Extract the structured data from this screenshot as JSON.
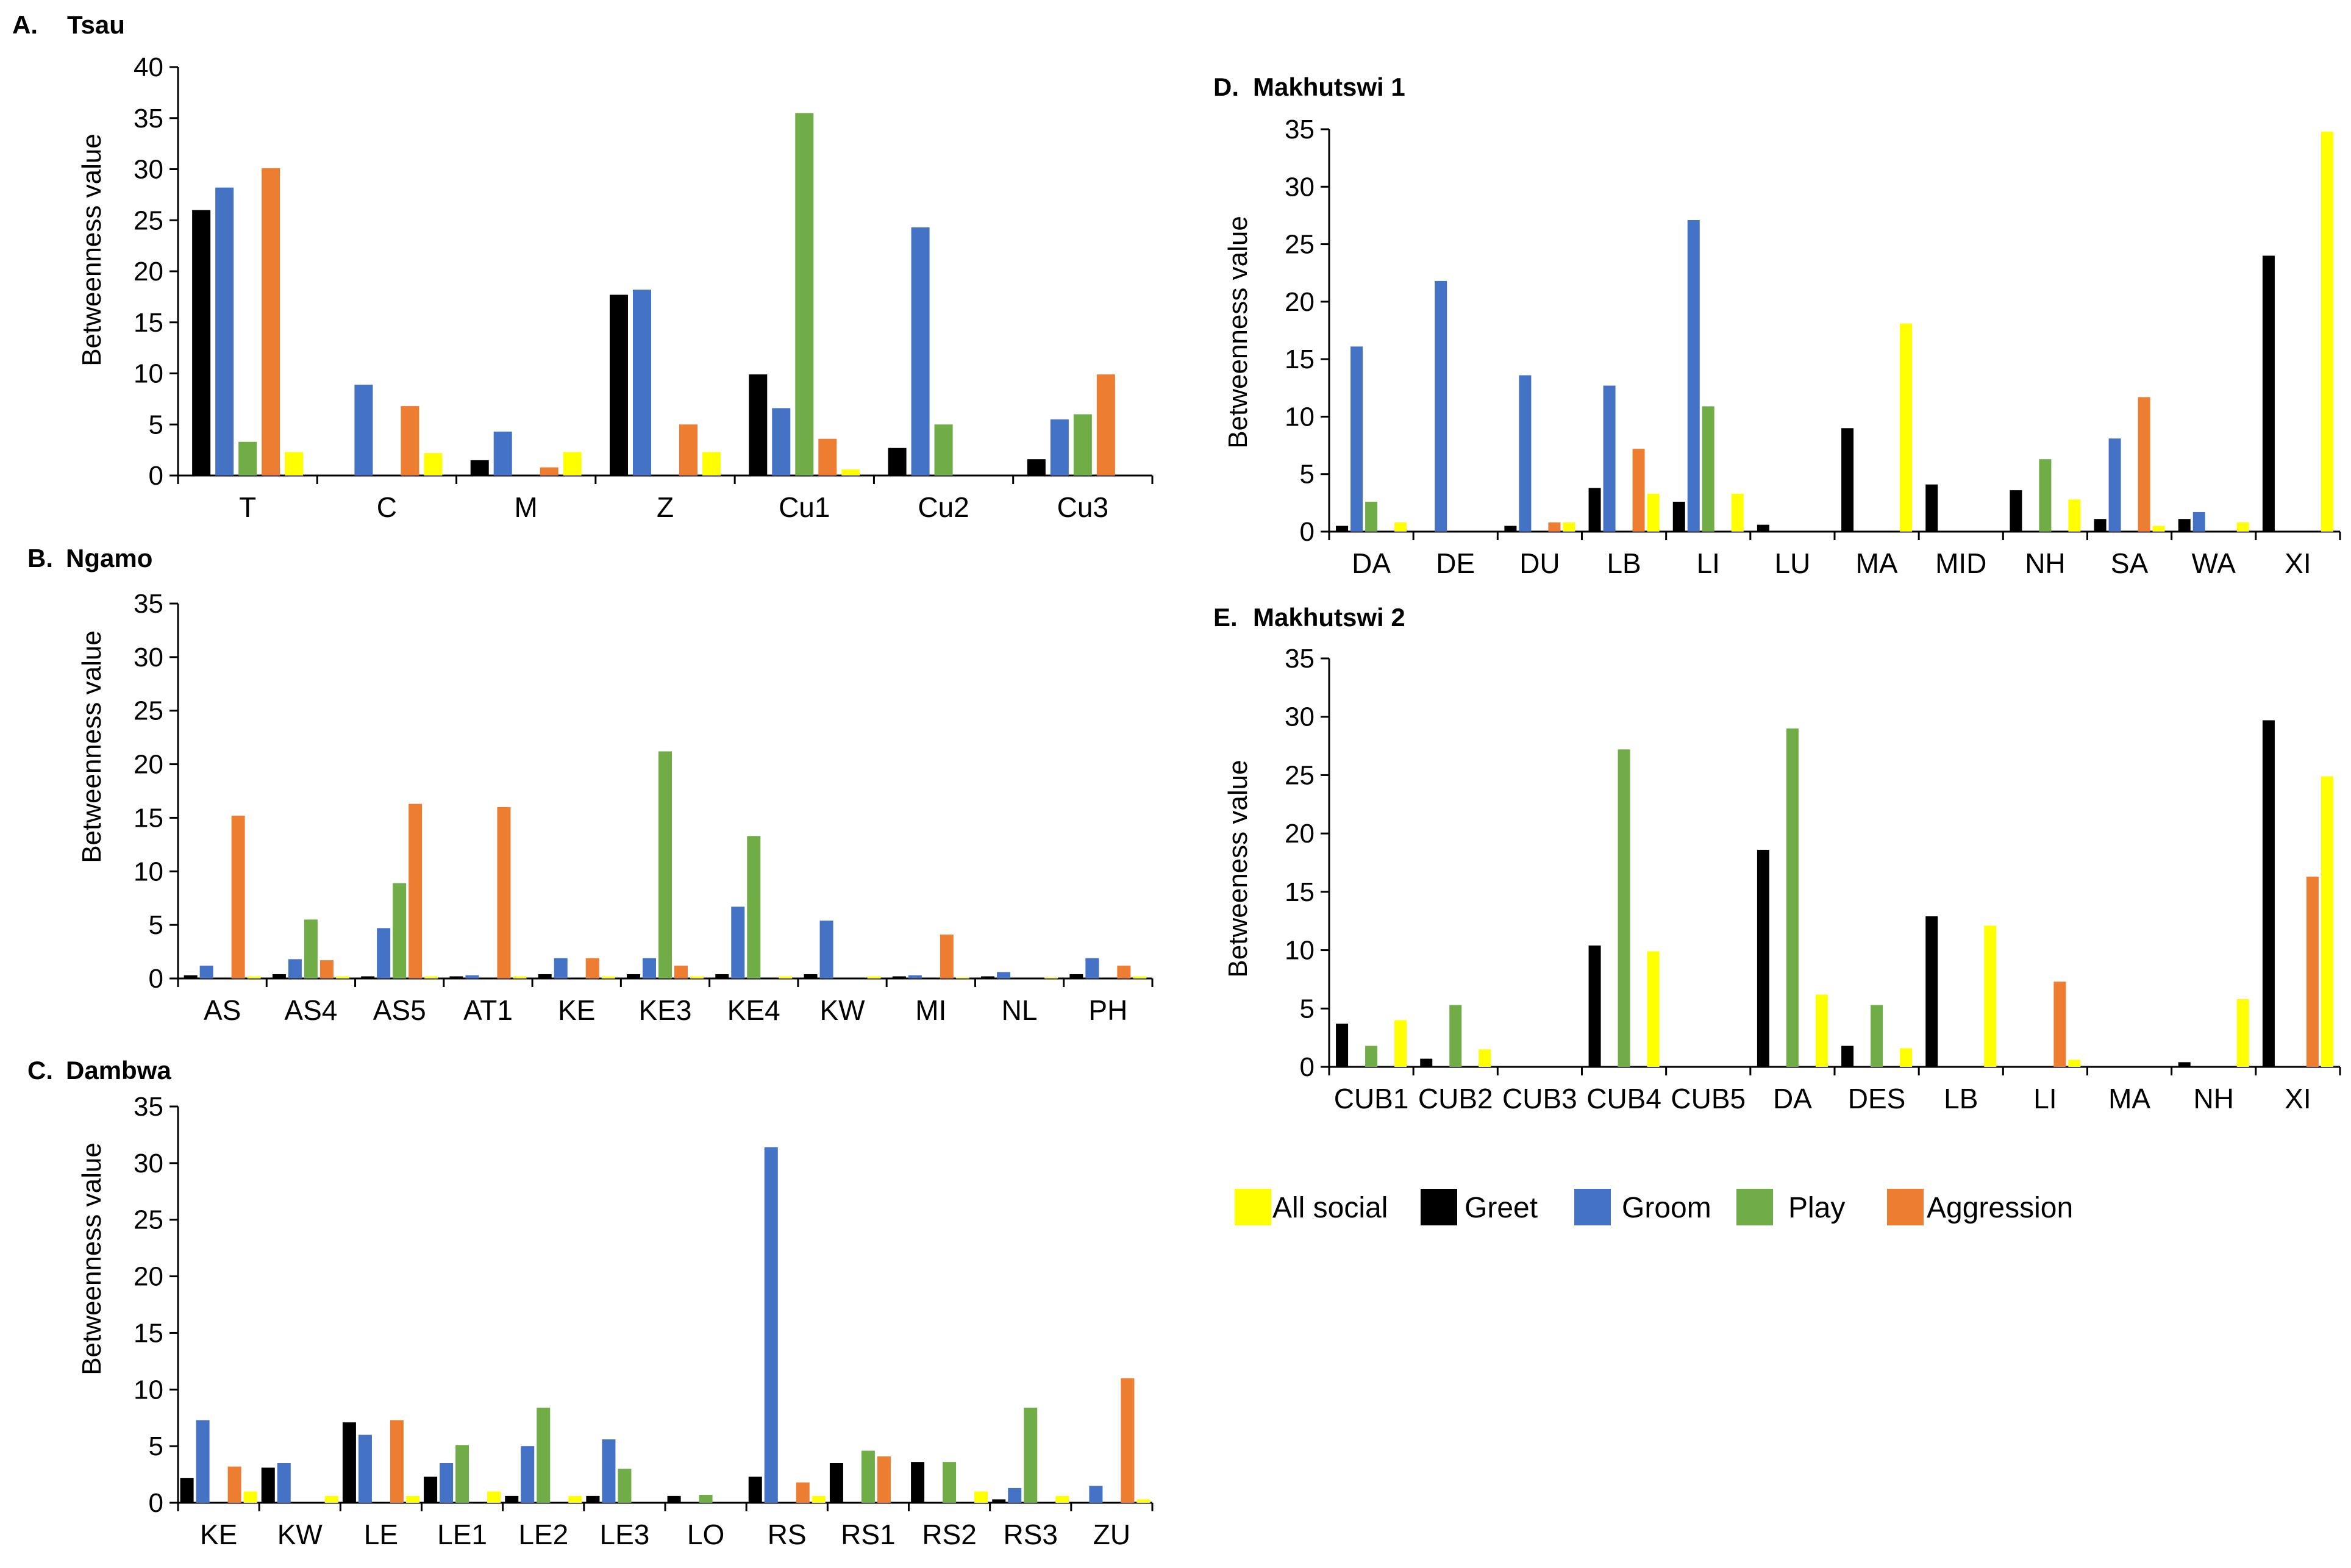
{
  "colors": {
    "all_social": "#FFFF00",
    "greet": "#000000",
    "groom": "#4472C4",
    "play": "#70AD47",
    "aggression": "#ED7D31"
  },
  "legend": [
    {
      "key": "all_social",
      "label": "All social"
    },
    {
      "key": "greet",
      "label": "Greet"
    },
    {
      "key": "groom",
      "label": "Groom"
    },
    {
      "key": "play",
      "label": "Play"
    },
    {
      "key": "aggression",
      "label": "Aggression"
    }
  ],
  "chart_data": [
    {
      "id": "A",
      "type": "bar",
      "letter": "A.",
      "title": "Tsau",
      "ylabel": "Betweenness value",
      "ylim": [
        0,
        40
      ],
      "yticks": [
        0,
        5,
        10,
        15,
        20,
        25,
        30,
        35,
        40
      ],
      "categories": [
        "T",
        "C",
        "M",
        "Z",
        "Cu1",
        "Cu2",
        "Cu3"
      ],
      "series": [
        {
          "name": "Greet",
          "key": "greet",
          "values": [
            26,
            0,
            1.5,
            17.7,
            9.9,
            2.7,
            1.6
          ]
        },
        {
          "name": "Groom",
          "key": "groom",
          "values": [
            28.2,
            8.9,
            4.3,
            18.2,
            6.6,
            24.3,
            5.5
          ]
        },
        {
          "name": "Play",
          "key": "play",
          "values": [
            3.3,
            0,
            0,
            0,
            35.5,
            5,
            6
          ]
        },
        {
          "name": "Aggression",
          "key": "aggression",
          "values": [
            30.1,
            6.8,
            0.8,
            5,
            3.6,
            0,
            9.9
          ]
        },
        {
          "name": "All social",
          "key": "all_social",
          "values": [
            2.3,
            2.2,
            2.3,
            2.3,
            0.6,
            0,
            0
          ]
        }
      ]
    },
    {
      "id": "B",
      "type": "bar",
      "letter": "B.",
      "title": "Ngamo",
      "ylabel": "Betweenness value",
      "ylim": [
        0,
        35
      ],
      "yticks": [
        0,
        5,
        10,
        15,
        20,
        25,
        30,
        35
      ],
      "categories": [
        "AS",
        "AS4",
        "AS5",
        "AT1",
        "KE",
        "KE3",
        "KE4",
        "KW",
        "MI",
        "NL",
        "PH"
      ],
      "series": [
        {
          "name": "Greet",
          "key": "greet",
          "values": [
            0.3,
            0.4,
            0.2,
            0.2,
            0.4,
            0.4,
            0.4,
            0.4,
            0.2,
            0.2,
            0.4
          ]
        },
        {
          "name": "Groom",
          "key": "groom",
          "values": [
            1.2,
            1.8,
            4.7,
            0.3,
            1.9,
            1.9,
            6.7,
            5.4,
            0.3,
            0.6,
            1.9
          ]
        },
        {
          "name": "Play",
          "key": "play",
          "values": [
            0,
            5.5,
            8.9,
            0,
            0,
            21.2,
            13.3,
            0,
            0,
            0,
            0
          ]
        },
        {
          "name": "Aggression",
          "key": "aggression",
          "values": [
            15.2,
            1.7,
            16.3,
            16,
            1.9,
            1.2,
            0,
            0,
            4.1,
            0,
            1.2
          ]
        },
        {
          "name": "All social",
          "key": "all_social",
          "values": [
            0.2,
            0.2,
            0.2,
            0.2,
            0.2,
            0.2,
            0.2,
            0.2,
            0.1,
            0.1,
            0.2
          ]
        }
      ]
    },
    {
      "id": "C",
      "type": "bar",
      "letter": "C.",
      "title": "Dambwa",
      "ylabel": "Betweenness value",
      "ylim": [
        0,
        35
      ],
      "yticks": [
        0,
        5,
        10,
        15,
        20,
        25,
        30,
        35
      ],
      "categories": [
        "KE",
        "KW",
        "LE",
        "LE1",
        "LE2",
        "LE3",
        "LO",
        "RS",
        "RS1",
        "RS2",
        "RS3",
        "ZU"
      ],
      "series": [
        {
          "name": "Greet",
          "key": "greet",
          "values": [
            2.2,
            3.1,
            7.1,
            2.3,
            0.6,
            0.6,
            0.6,
            2.3,
            3.5,
            3.6,
            0.3,
            0
          ]
        },
        {
          "name": "Groom",
          "key": "groom",
          "values": [
            7.3,
            3.5,
            6,
            3.5,
            5,
            5.6,
            0,
            31.4,
            0,
            0,
            1.3,
            1.5
          ]
        },
        {
          "name": "Play",
          "key": "play",
          "values": [
            0,
            0,
            0,
            5.1,
            8.4,
            3,
            0.7,
            0,
            4.6,
            3.6,
            8.4,
            0
          ]
        },
        {
          "name": "Aggression",
          "key": "aggression",
          "values": [
            3.2,
            0,
            7.3,
            0,
            0,
            0,
            0,
            1.8,
            4.1,
            0,
            0,
            11
          ]
        },
        {
          "name": "All social",
          "key": "all_social",
          "values": [
            1,
            0.6,
            0.6,
            1,
            0.6,
            0,
            0,
            0.6,
            0,
            1,
            0.6,
            0.3
          ]
        }
      ]
    },
    {
      "id": "D",
      "type": "bar",
      "letter": "D.",
      "title": "Makhutswi 1",
      "ylabel": "Betweenness value",
      "ylim": [
        0,
        35
      ],
      "yticks": [
        0,
        5,
        10,
        15,
        20,
        25,
        30,
        35
      ],
      "categories": [
        "DA",
        "DE",
        "DU",
        "LB",
        "LI",
        "LU",
        "MA",
        "MID",
        "NH",
        "SA",
        "WA",
        "XI"
      ],
      "series": [
        {
          "name": "Greet",
          "key": "greet",
          "values": [
            0.5,
            0,
            0.5,
            3.8,
            2.6,
            0.6,
            9,
            4.1,
            3.6,
            1.1,
            1.1,
            24
          ]
        },
        {
          "name": "Groom",
          "key": "groom",
          "values": [
            16.1,
            21.8,
            13.6,
            12.7,
            27.1,
            0,
            0,
            0,
            0,
            8.1,
            1.7,
            0
          ]
        },
        {
          "name": "Play",
          "key": "play",
          "values": [
            2.6,
            0,
            0,
            0,
            10.9,
            0,
            0,
            0,
            6.3,
            0,
            0,
            0
          ]
        },
        {
          "name": "Aggression",
          "key": "aggression",
          "values": [
            0,
            0,
            0.8,
            7.2,
            0,
            0,
            0,
            0,
            0,
            11.7,
            0,
            0
          ]
        },
        {
          "name": "All social",
          "key": "all_social",
          "values": [
            0.8,
            0,
            0.8,
            3.3,
            3.3,
            0,
            18.1,
            0,
            2.8,
            0.5,
            0.8,
            34.8
          ]
        }
      ]
    },
    {
      "id": "E",
      "type": "bar",
      "letter": "E.",
      "title": "Makhutswi 2",
      "ylabel": "Betweeness value",
      "ylim": [
        0,
        35
      ],
      "yticks": [
        0,
        5,
        10,
        15,
        20,
        25,
        30,
        35
      ],
      "categories": [
        "CUB1",
        "CUB2",
        "CUB3",
        "CUB4",
        "CUB5",
        "DA",
        "DES",
        "LB",
        "LI",
        "MA",
        "NH",
        "XI"
      ],
      "series": [
        {
          "name": "Greet",
          "key": "greet",
          "values": [
            3.7,
            0.7,
            0,
            10.4,
            0,
            18.6,
            1.8,
            12.9,
            0,
            0,
            0.4,
            29.7
          ]
        },
        {
          "name": "Groom",
          "key": "groom",
          "values": [
            0,
            0,
            0,
            0,
            0,
            0,
            0,
            0,
            0,
            0,
            0,
            0
          ]
        },
        {
          "name": "Play",
          "key": "play",
          "values": [
            1.8,
            5.3,
            0,
            27.2,
            0,
            29,
            5.3,
            0,
            0,
            0,
            0,
            0
          ]
        },
        {
          "name": "Aggression",
          "key": "aggression",
          "values": [
            0,
            0,
            0,
            0,
            0,
            0,
            0,
            0,
            7.3,
            0,
            0,
            16.3
          ]
        },
        {
          "name": "All social",
          "key": "all_social",
          "values": [
            4,
            1.5,
            0,
            9.9,
            0,
            6.2,
            1.6,
            12.1,
            0.6,
            0,
            5.8,
            24.9
          ]
        }
      ]
    }
  ]
}
